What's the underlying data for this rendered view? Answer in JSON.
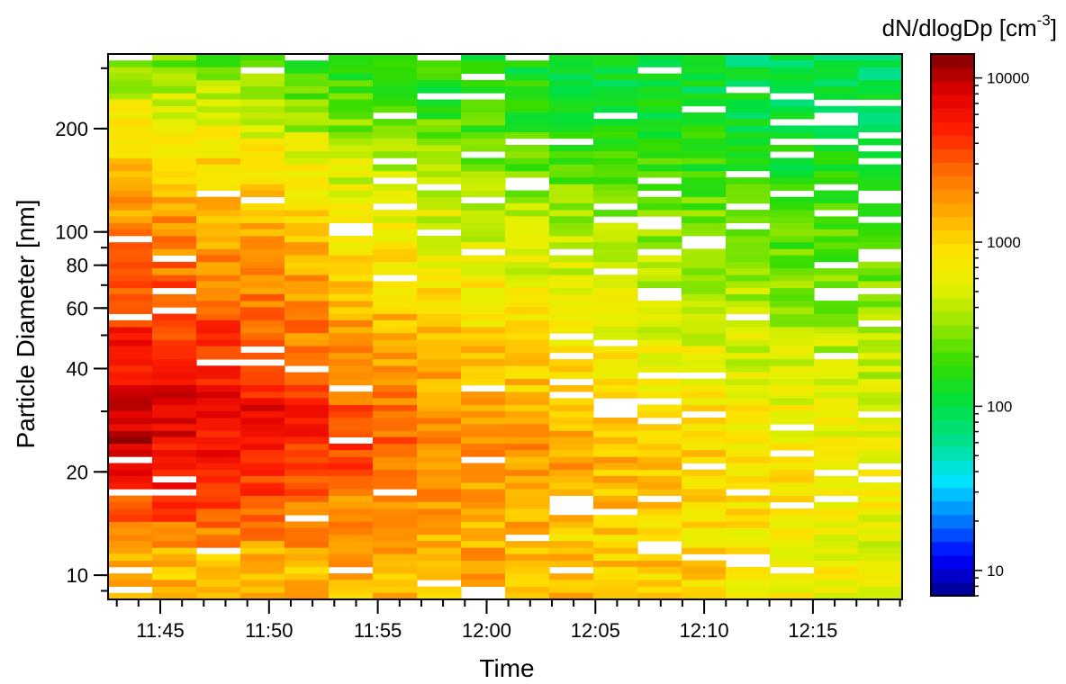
{
  "chart_data": {
    "type": "heatmap",
    "xlabel": "Time",
    "ylabel": "Particle Diameter [nm]",
    "y_scale": "log",
    "x_ticks": [
      "11:45",
      "11:50",
      "11:55",
      "12:00",
      "12:05",
      "12:10",
      "12:15"
    ],
    "y_ticks": [
      "10",
      "20",
      "40",
      "60",
      "80",
      "100",
      "200"
    ],
    "colorbar": {
      "title_main": "dN/dlogDp [cm",
      "title_sup": "-3",
      "title_end": "]",
      "scale": "log",
      "range": [
        7,
        14000
      ],
      "ticks": [
        "10",
        "100",
        "1000",
        "10000"
      ],
      "colors": [
        "#00008b",
        "#0000ff",
        "#0080ff",
        "#00e5ff",
        "#00e08c",
        "#00e03c",
        "#32dc00",
        "#96e600",
        "#e6f000",
        "#ffe000",
        "#ffa500",
        "#ff6a00",
        "#ff2000",
        "#e00000",
        "#800000"
      ]
    },
    "grid_description": "time columns from 11:43 to 12:19, diameter bins from about 9 nm to about 310 nm",
    "columns": [
      {
        "time": "11:43",
        "levels": [
          3.1,
          3.1,
          3.1,
          3.11,
          3.25,
          3.35,
          3.45,
          3.5,
          3.65,
          3.75,
          3.82,
          3.9,
          3.95,
          3.95,
          3.92,
          3.9,
          3.85,
          3.8,
          3.78,
          3.73,
          3.68,
          3.64,
          3.6,
          3.55,
          3.55,
          3.5,
          3.44,
          3.38,
          3.3,
          3.26,
          3.2,
          3.16,
          3.1,
          3.05,
          3.0,
          2.92,
          2.88,
          2.79,
          2.71,
          2.6,
          2.54,
          2.42
        ]
      },
      {
        "time": "11:45",
        "levels": [
          3.11,
          3.11,
          3.12,
          3.12,
          3.32,
          3.4,
          3.5,
          3.55,
          3.7,
          3.7,
          3.76,
          3.8,
          3.85,
          3.88,
          3.9,
          3.85,
          3.8,
          3.8,
          3.7,
          3.65,
          3.6,
          3.57,
          3.5,
          3.49,
          3.48,
          3.4,
          3.35,
          3.3,
          3.25,
          3.26,
          3.15,
          3.1,
          3.05,
          2.95,
          2.95,
          2.85,
          2.8,
          2.73,
          2.67,
          2.55,
          2.45,
          2.4
        ]
      },
      {
        "time": "11:47",
        "levels": [
          3.11,
          3.12,
          3.12,
          3.12,
          3.31,
          3.38,
          3.45,
          3.5,
          3.6,
          3.6,
          3.7,
          3.75,
          3.8,
          3.85,
          3.85,
          3.8,
          3.75,
          3.7,
          3.65,
          3.6,
          3.58,
          3.55,
          3.55,
          3.45,
          3.4,
          3.35,
          3.3,
          3.25,
          3.25,
          3.15,
          3.1,
          3.05,
          3.0,
          2.95,
          2.9,
          2.85,
          2.75,
          2.7,
          2.6,
          2.55,
          2.44,
          2.35
        ]
      },
      {
        "time": "11:49",
        "levels": [
          3.13,
          3.12,
          3.13,
          3.13,
          3.29,
          3.35,
          3.4,
          3.45,
          3.55,
          3.6,
          3.65,
          3.7,
          3.75,
          3.78,
          3.8,
          3.7,
          3.68,
          3.6,
          3.55,
          3.5,
          3.45,
          3.4,
          3.4,
          3.35,
          3.3,
          3.25,
          3.2,
          3.2,
          3.15,
          3.1,
          3.05,
          3.02,
          2.95,
          2.9,
          2.85,
          2.75,
          2.7,
          2.65,
          2.55,
          2.5,
          2.45,
          2.4
        ]
      },
      {
        "time": "11:51",
        "levels": [
          3.12,
          3.13,
          3.13,
          3.15,
          3.25,
          3.3,
          3.35,
          3.4,
          3.5,
          3.55,
          3.6,
          3.65,
          3.7,
          3.72,
          3.65,
          3.6,
          3.55,
          3.5,
          3.45,
          3.4,
          3.35,
          3.35,
          3.3,
          3.25,
          3.2,
          3.15,
          3.15,
          3.1,
          3.05,
          3.0,
          2.95,
          2.9,
          2.85,
          2.8,
          2.75,
          2.65,
          2.55,
          2.5,
          2.4,
          2.35,
          2.3,
          2.25
        ]
      },
      {
        "time": "11:53",
        "levels": [
          3.15,
          3.15,
          3.16,
          3.18,
          3.2,
          3.25,
          3.3,
          3.35,
          3.4,
          3.45,
          3.5,
          3.55,
          3.6,
          3.55,
          3.5,
          3.45,
          3.4,
          3.35,
          3.3,
          3.25,
          3.2,
          3.2,
          3.15,
          3.1,
          3.05,
          3.05,
          3.0,
          2.95,
          2.9,
          2.85,
          2.8,
          2.75,
          2.7,
          2.65,
          2.6,
          2.55,
          2.45,
          2.4,
          2.35,
          2.3,
          2.25,
          2.2
        ]
      },
      {
        "time": "11:55",
        "levels": [
          3.15,
          3.16,
          3.18,
          3.2,
          3.2,
          3.25,
          3.28,
          3.3,
          3.35,
          3.4,
          3.4,
          3.45,
          3.45,
          3.42,
          3.4,
          3.35,
          3.3,
          3.25,
          3.25,
          3.2,
          3.15,
          3.1,
          3.05,
          3.0,
          2.95,
          2.95,
          2.9,
          2.85,
          2.8,
          2.75,
          2.7,
          2.65,
          2.6,
          2.55,
          2.5,
          2.45,
          2.4,
          2.35,
          2.3,
          2.25,
          2.2,
          2.15
        ]
      },
      {
        "time": "11:57",
        "levels": [
          3.15,
          3.18,
          3.18,
          3.2,
          3.18,
          3.2,
          3.25,
          3.28,
          3.3,
          3.32,
          3.35,
          3.35,
          3.35,
          3.32,
          3.3,
          3.25,
          3.2,
          3.18,
          3.15,
          3.1,
          3.05,
          3.02,
          3.0,
          2.95,
          2.9,
          2.85,
          2.8,
          2.75,
          2.72,
          2.7,
          2.65,
          2.6,
          2.55,
          2.5,
          2.45,
          2.4,
          2.35,
          2.3,
          2.25,
          2.2,
          2.2,
          2.15
        ]
      },
      {
        "time": "11:59",
        "levels": [
          3.15,
          3.18,
          3.18,
          3.2,
          3.15,
          3.18,
          3.2,
          3.22,
          3.25,
          3.28,
          3.3,
          3.3,
          3.28,
          3.25,
          3.22,
          3.2,
          3.15,
          3.1,
          3.08,
          3.05,
          3.0,
          2.95,
          2.92,
          2.9,
          2.85,
          2.8,
          2.75,
          2.7,
          2.68,
          2.65,
          2.6,
          2.55,
          2.5,
          2.45,
          2.4,
          2.35,
          2.3,
          2.25,
          2.2,
          2.15,
          2.15,
          2.1
        ]
      },
      {
        "time": "12:01",
        "levels": [
          3.12,
          3.15,
          3.18,
          3.15,
          3.1,
          3.15,
          3.18,
          3.2,
          3.2,
          3.22,
          3.25,
          3.25,
          3.22,
          3.2,
          3.18,
          3.15,
          3.1,
          3.05,
          3.0,
          2.98,
          2.95,
          2.9,
          2.85,
          2.82,
          2.8,
          2.75,
          2.7,
          2.65,
          2.62,
          2.6,
          2.55,
          2.5,
          2.45,
          2.4,
          2.35,
          2.3,
          2.25,
          2.22,
          2.2,
          2.15,
          2.1,
          2.1
        ]
      },
      {
        "time": "12:03",
        "levels": [
          3.1,
          3.12,
          3.15,
          3.1,
          3.05,
          3.1,
          3.12,
          3.15,
          3.15,
          3.18,
          3.2,
          3.18,
          3.15,
          3.12,
          3.1,
          3.05,
          3.0,
          2.98,
          2.95,
          2.9,
          2.85,
          2.82,
          2.8,
          2.75,
          2.72,
          2.7,
          2.65,
          2.6,
          2.58,
          2.55,
          2.5,
          2.45,
          2.4,
          2.35,
          2.3,
          2.25,
          2.22,
          2.2,
          2.15,
          2.1,
          2.08,
          2.05
        ]
      },
      {
        "time": "12:05",
        "levels": [
          3.05,
          3.08,
          3.1,
          3.05,
          3.0,
          3.05,
          3.08,
          3.1,
          3.1,
          3.12,
          3.12,
          3.1,
          3.08,
          3.05,
          3.02,
          3.0,
          2.95,
          2.9,
          2.88,
          2.85,
          2.8,
          2.78,
          2.75,
          2.7,
          2.68,
          2.65,
          2.6,
          2.55,
          2.52,
          2.5,
          2.45,
          2.4,
          2.35,
          2.3,
          2.25,
          2.22,
          2.2,
          2.15,
          2.1,
          2.08,
          2.05,
          2.0
        ]
      },
      {
        "time": "12:07",
        "levels": [
          3.0,
          3.02,
          3.05,
          3.0,
          2.95,
          3.0,
          3.02,
          3.05,
          3.05,
          3.05,
          3.05,
          3.02,
          3.0,
          2.98,
          2.95,
          2.92,
          2.88,
          2.85,
          2.82,
          2.8,
          2.75,
          2.72,
          2.7,
          2.65,
          2.62,
          2.6,
          2.55,
          2.5,
          2.48,
          2.45,
          2.4,
          2.35,
          2.3,
          2.25,
          2.22,
          2.2,
          2.15,
          2.12,
          2.1,
          2.05,
          2.02,
          2.0
        ]
      },
      {
        "time": "12:09",
        "levels": [
          2.95,
          2.98,
          3.0,
          2.95,
          2.9,
          2.95,
          2.98,
          3.0,
          3.0,
          3.0,
          3.0,
          2.98,
          2.95,
          2.92,
          2.9,
          2.88,
          2.85,
          2.8,
          2.78,
          2.75,
          2.7,
          2.68,
          2.65,
          2.6,
          2.58,
          2.55,
          2.5,
          2.45,
          2.42,
          2.4,
          2.35,
          2.3,
          2.25,
          2.22,
          2.2,
          2.15,
          2.12,
          2.1,
          2.05,
          2.02,
          2.0,
          1.98
        ]
      },
      {
        "time": "12:11",
        "levels": [
          2.9,
          2.92,
          2.95,
          2.9,
          2.85,
          2.9,
          2.92,
          2.95,
          2.95,
          2.95,
          2.95,
          2.92,
          2.9,
          2.88,
          2.85,
          2.82,
          2.8,
          2.75,
          2.72,
          2.7,
          2.65,
          2.62,
          2.6,
          2.55,
          2.52,
          2.5,
          2.45,
          2.4,
          2.38,
          2.35,
          2.3,
          2.25,
          2.22,
          2.2,
          2.15,
          2.12,
          2.1,
          2.05,
          2.02,
          2.0,
          1.98,
          1.95
        ]
      },
      {
        "time": "12:13",
        "levels": [
          2.85,
          2.88,
          2.9,
          2.85,
          2.8,
          2.85,
          2.88,
          2.9,
          2.9,
          2.9,
          2.9,
          2.88,
          2.85,
          2.82,
          2.8,
          2.78,
          2.75,
          2.7,
          2.68,
          2.65,
          2.6,
          2.58,
          2.55,
          2.5,
          2.48,
          2.45,
          2.4,
          2.35,
          2.32,
          2.3,
          2.25,
          2.22,
          2.2,
          2.15,
          2.12,
          2.1,
          2.05,
          2.02,
          2.0,
          1.98,
          1.95,
          1.92
        ]
      },
      {
        "time": "12:15",
        "levels": [
          2.8,
          2.82,
          2.85,
          2.8,
          2.78,
          2.8,
          2.82,
          2.85,
          2.85,
          2.85,
          2.85,
          2.82,
          2.8,
          2.78,
          2.75,
          2.72,
          2.7,
          2.65,
          2.62,
          2.6,
          2.55,
          2.52,
          2.5,
          2.48,
          2.45,
          2.42,
          2.38,
          2.33,
          2.3,
          2.28,
          2.23,
          2.2,
          2.18,
          2.13,
          2.1,
          2.08,
          2.03,
          2.0,
          1.98,
          1.95,
          1.92,
          1.9
        ]
      },
      {
        "time": "12:17",
        "levels": [
          2.78,
          2.8,
          2.82,
          2.78,
          2.75,
          2.78,
          2.8,
          2.82,
          2.82,
          2.82,
          2.82,
          2.8,
          2.78,
          2.75,
          2.72,
          2.7,
          2.68,
          2.63,
          2.6,
          2.58,
          2.53,
          2.5,
          2.48,
          2.45,
          2.42,
          2.4,
          2.36,
          2.31,
          2.28,
          2.26,
          2.21,
          2.18,
          2.16,
          2.11,
          2.08,
          2.06,
          2.01,
          1.98,
          1.96,
          1.93,
          1.9,
          1.88
        ]
      }
    ]
  }
}
